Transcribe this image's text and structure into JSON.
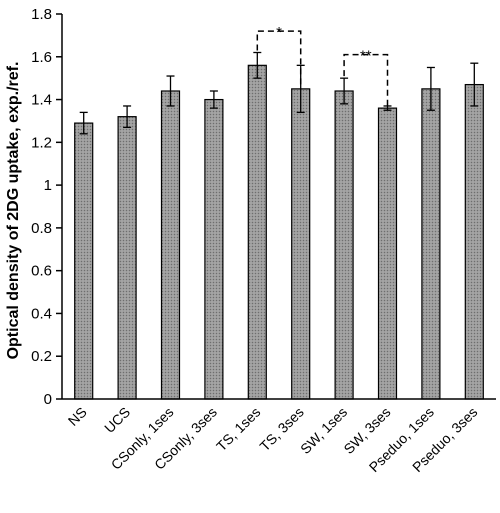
{
  "chart_data": {
    "type": "bar",
    "title": "",
    "xlabel": "",
    "ylabel": "Optical density of 2DG uptake, exp./ref.",
    "ylim": [
      0,
      1.8
    ],
    "yticks": [
      "0",
      "0.2",
      "0.4",
      "0.6",
      "0.8",
      "1",
      "1.2",
      "1.4",
      "1.6",
      "1.8"
    ],
    "grid": false,
    "bar_color": "#9a9a9a",
    "categories": [
      "NS",
      "UCS",
      "CSonly, 1ses",
      "CSonly, 3ses",
      "TS, 1ses",
      "TS, 3ses",
      "SW, 1ses",
      "SW, 3ses",
      "Pseduo, 1ses",
      "Pseduo, 3ses"
    ],
    "values": [
      1.29,
      1.32,
      1.44,
      1.4,
      1.56,
      1.45,
      1.44,
      1.36,
      1.45,
      1.47
    ],
    "errors": [
      0.05,
      0.05,
      0.07,
      0.04,
      0.06,
      0.11,
      0.06,
      0.01,
      0.1,
      0.1
    ],
    "significance": [
      {
        "from": 4,
        "to": 5,
        "label": "*",
        "y": 1.72
      },
      {
        "from": 6,
        "to": 7,
        "label": "**",
        "y": 1.61
      }
    ]
  }
}
